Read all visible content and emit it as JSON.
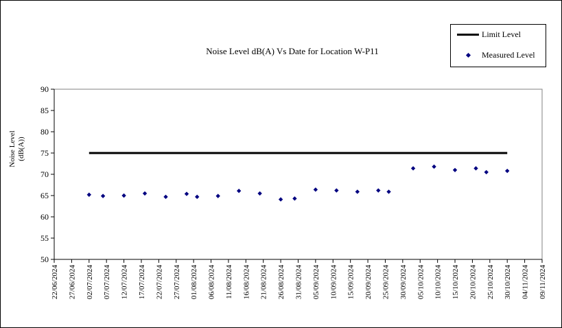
{
  "chart_data": {
    "type": "line",
    "title": "Noise Level dB(A) Vs Date for Location W-P11",
    "xlabel": "",
    "ylabel": "Noise Level (dB(A))",
    "ylabel_lines": [
      "Noise Level",
      "(dB(A))"
    ],
    "ylim": [
      50,
      90
    ],
    "yticks": [
      50,
      55,
      60,
      65,
      70,
      75,
      80,
      85,
      90
    ],
    "x_axis": {
      "type": "date",
      "start": "2024-06-22",
      "end": "2024-11-09",
      "tick_interval_days": 5
    },
    "xtick_labels": [
      "22/06/2024",
      "27/06/2024",
      "02/07/2024",
      "07/07/2024",
      "12/07/2024",
      "17/07/2024",
      "22/07/2024",
      "27/07/2024",
      "01/08/2024",
      "06/08/2024",
      "11/08/2024",
      "16/08/2024",
      "21/08/2024",
      "26/08/2024",
      "31/08/2024",
      "05/09/2024",
      "10/09/2024",
      "15/09/2024",
      "20/09/2024",
      "25/09/2024",
      "30/09/2024",
      "05/10/2024",
      "10/10/2024",
      "15/10/2024",
      "20/10/2024",
      "25/10/2024",
      "30/10/2024",
      "04/11/2024",
      "09/11/2024"
    ],
    "grid": false,
    "legend": "top-right",
    "series": [
      {
        "name": "Limit Level",
        "style": "line",
        "color": "#000000",
        "x": [
          "2024-07-02",
          "2024-10-30"
        ],
        "values": [
          75,
          75
        ]
      },
      {
        "name": "Measured Level",
        "style": "scatter",
        "marker": "diamond",
        "color": "#000080",
        "x": [
          "2024-07-02",
          "2024-07-06",
          "2024-07-12",
          "2024-07-18",
          "2024-07-24",
          "2024-07-30",
          "2024-08-02",
          "2024-08-08",
          "2024-08-14",
          "2024-08-20",
          "2024-08-26",
          "2024-08-30",
          "2024-09-05",
          "2024-09-11",
          "2024-09-17",
          "2024-09-23",
          "2024-09-26",
          "2024-10-03",
          "2024-10-09",
          "2024-10-15",
          "2024-10-21",
          "2024-10-24",
          "2024-10-30"
        ],
        "values": [
          65.2,
          64.9,
          65.0,
          65.5,
          64.7,
          65.4,
          64.7,
          64.9,
          66.1,
          65.5,
          64.1,
          64.3,
          66.4,
          66.2,
          65.9,
          66.2,
          65.9,
          71.4,
          71.8,
          71.0,
          71.4,
          70.5,
          70.8
        ]
      }
    ]
  }
}
